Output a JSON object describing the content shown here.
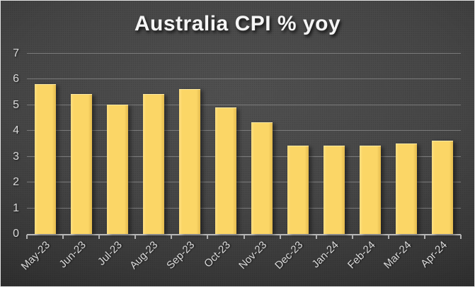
{
  "chart_data": {
    "type": "bar",
    "title": "Australia CPI % yoy",
    "categories": [
      "May-23",
      "Jun-23",
      "Jul-23",
      "Aug-23",
      "Sep-23",
      "Oct-23",
      "Nov-23",
      "Dec-23",
      "Jan-24",
      "Feb-24",
      "Mar-24",
      "Apr-24"
    ],
    "values": [
      5.8,
      5.4,
      5.0,
      5.4,
      5.6,
      4.9,
      4.3,
      3.4,
      3.4,
      3.4,
      3.5,
      3.6
    ],
    "xlabel": "",
    "ylabel": "",
    "ylim": [
      0,
      7
    ],
    "yticks": [
      0,
      1,
      2,
      3,
      4,
      5,
      6,
      7
    ],
    "grid": true,
    "legend": false,
    "bar_color": "#FBD666",
    "axis_text_color": "#D9D9D9",
    "gridline_color": "#8C8C8C",
    "background_color": "#3C3C3C"
  }
}
